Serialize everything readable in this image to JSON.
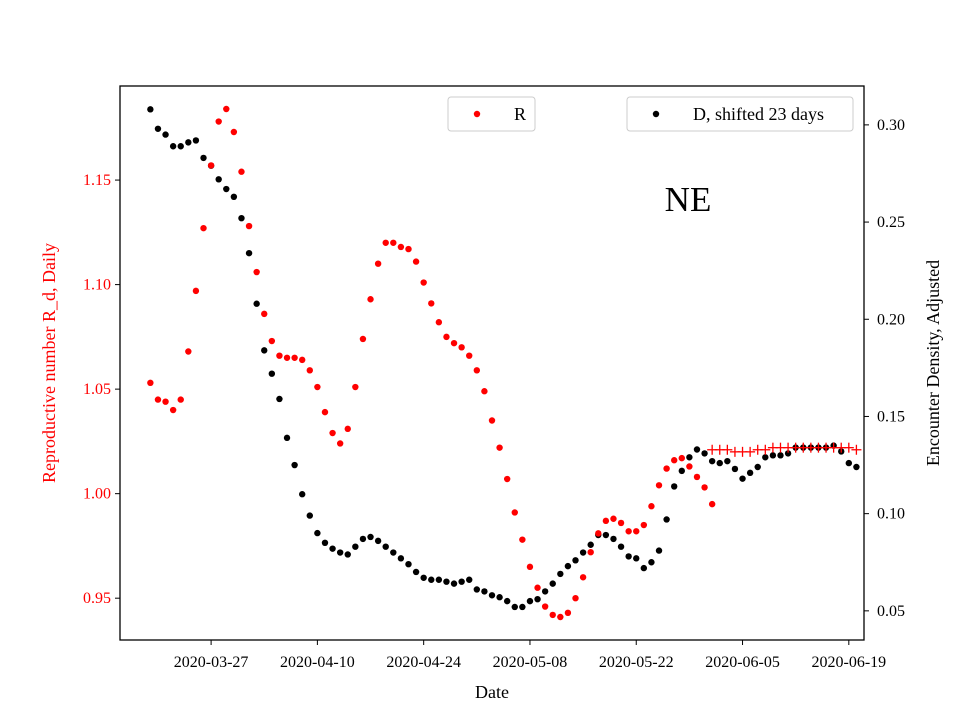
{
  "chart_data": {
    "type": "scatter",
    "annotation": "NE",
    "xlabel": "Date",
    "ylabel_left": "Reproductive number R_d, Daily",
    "ylabel_right": "Encounter Density, Adjusted",
    "x_ticks": [
      "2020-03-27",
      "2020-04-10",
      "2020-04-24",
      "2020-05-08",
      "2020-05-22",
      "2020-06-05",
      "2020-06-19"
    ],
    "x_range": [
      "2020-03-15",
      "2020-06-21"
    ],
    "y_left_ticks": [
      "0.95",
      "1.00",
      "1.05",
      "1.10",
      "1.15"
    ],
    "y_left_range": [
      0.93,
      1.195
    ],
    "y_right_ticks": [
      "0.05",
      "0.10",
      "0.15",
      "0.20",
      "0.25",
      "0.30"
    ],
    "y_right_range": [
      0.035,
      0.32
    ],
    "legend_position": "top",
    "colors": {
      "R": "#ff0000",
      "D": "#000000",
      "left_axis": "#ff0000",
      "right_axis": "#000000"
    },
    "series": [
      {
        "name": "R",
        "axis": "left",
        "marker": "dot",
        "start_date": "2020-03-19",
        "values": [
          1.053,
          1.045,
          1.044,
          1.04,
          1.045,
          1.068,
          1.097,
          1.127,
          1.157,
          1.178,
          1.184,
          1.173,
          1.154,
          1.128,
          1.106,
          1.086,
          1.073,
          1.066,
          1.065,
          1.065,
          1.064,
          1.059,
          1.051,
          1.039,
          1.029,
          1.024,
          1.031,
          1.051,
          1.074,
          1.093,
          1.11,
          1.12,
          1.12,
          1.118,
          1.117,
          1.111,
          1.101,
          1.091,
          1.082,
          1.075,
          1.072,
          1.07,
          1.066,
          1.059,
          1.049,
          1.035,
          1.022,
          1.007,
          0.991,
          0.978,
          0.965,
          0.955,
          0.946,
          0.942,
          0.941,
          0.943,
          0.95,
          0.96,
          0.972,
          0.981,
          0.987,
          0.988,
          0.986,
          0.982,
          0.982,
          0.985,
          0.994,
          1.004,
          1.012,
          1.016,
          1.017,
          1.013,
          1.008,
          1.003,
          0.995
        ]
      },
      {
        "name": "R",
        "axis": "left",
        "marker": "plus",
        "start_date": "2020-06-01",
        "values": [
          1.021,
          1.021,
          1.021,
          1.02,
          1.02,
          1.02,
          1.021,
          1.021,
          1.022,
          1.022,
          1.022,
          1.022,
          1.022,
          1.022,
          1.022,
          1.022,
          1.022,
          1.022,
          1.022,
          1.021
        ]
      },
      {
        "name": "D, shifted 23 days",
        "axis": "right",
        "marker": "dot",
        "start_date": "2020-03-19",
        "values": [
          0.308,
          0.298,
          0.295,
          0.289,
          0.289,
          0.291,
          0.292,
          0.283,
          0.279,
          0.272,
          0.267,
          0.263,
          0.252,
          0.234,
          0.208,
          0.184,
          0.172,
          0.159,
          0.139,
          0.125,
          0.11,
          0.099,
          0.09,
          0.085,
          0.082,
          0.08,
          0.079,
          0.083,
          0.087,
          0.088,
          0.086,
          0.083,
          0.08,
          0.077,
          0.074,
          0.07,
          0.067,
          0.066,
          0.066,
          0.065,
          0.064,
          0.065,
          0.066,
          0.061,
          0.06,
          0.058,
          0.057,
          0.055,
          0.052,
          0.052,
          0.055,
          0.056,
          0.06,
          0.064,
          0.069,
          0.073,
          0.076,
          0.08,
          0.084,
          0.089,
          0.089,
          0.087,
          0.083,
          0.078,
          0.077,
          0.072,
          0.075,
          0.081,
          0.097,
          0.114,
          0.122,
          0.129,
          0.133,
          0.131,
          0.127,
          0.126,
          0.127,
          0.123,
          0.118,
          0.121,
          0.124,
          0.129,
          0.13,
          0.13,
          0.131,
          0.134,
          0.134,
          0.134,
          0.134,
          0.134,
          0.135,
          0.132,
          0.126,
          0.124
        ]
      }
    ]
  }
}
